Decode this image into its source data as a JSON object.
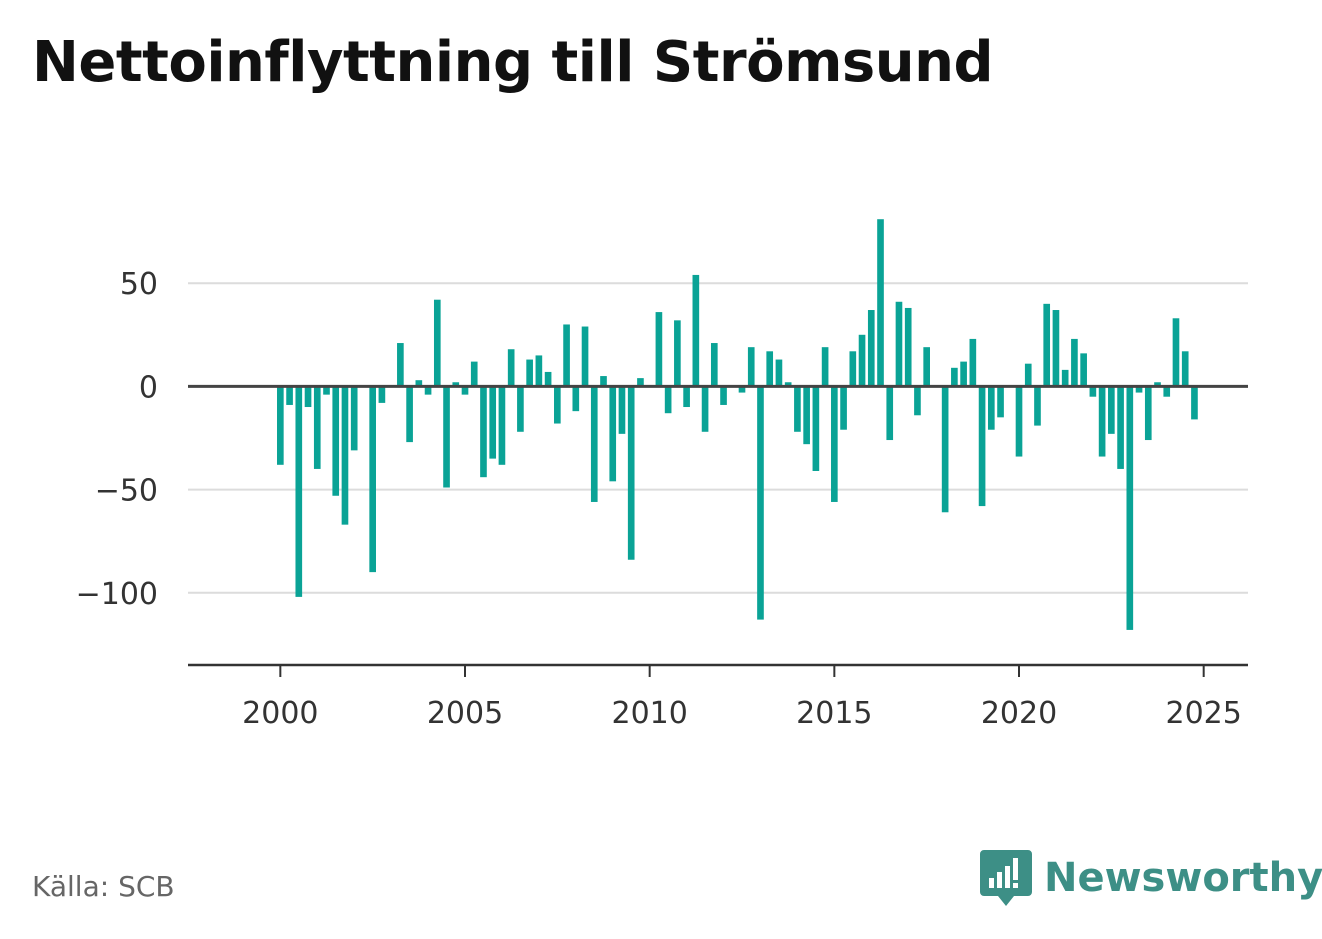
{
  "title": "Nettoinflyttning till Strömsund",
  "source": "Källa: SCB",
  "brand": {
    "name": "Newsworthy",
    "color": "#3d8f86"
  },
  "chart_data": {
    "type": "bar",
    "title": "Nettoinflyttning till Strömsund",
    "xlabel": "",
    "ylabel": "",
    "bar_color": "#0aa396",
    "x_start": 2000,
    "x_step": 0.25,
    "xlim": [
      1997.5,
      2026.2
    ],
    "ylim": [
      -135,
      100
    ],
    "yticks": [
      50,
      0,
      -50,
      -100
    ],
    "ytick_labels": [
      "50",
      "0",
      "−50",
      "−100"
    ],
    "xticks": [
      2000,
      2005,
      2010,
      2015,
      2020,
      2025
    ],
    "xtick_labels": [
      "2000",
      "2005",
      "2010",
      "2015",
      "2020",
      "2025"
    ],
    "grid": true,
    "values": [
      -38,
      -9,
      -102,
      -10,
      -40,
      -4,
      -53,
      -67,
      -31,
      0,
      -90,
      -8,
      0,
      21,
      -27,
      3,
      -4,
      42,
      -49,
      2,
      -4,
      12,
      -44,
      -35,
      -38,
      18,
      -22,
      13,
      15,
      7,
      -18,
      30,
      -12,
      29,
      -56,
      5,
      -46,
      -23,
      -84,
      4,
      0,
      36,
      -13,
      32,
      -10,
      54,
      -22,
      21,
      -9,
      0,
      -3,
      19,
      -113,
      17,
      13,
      2,
      -22,
      -28,
      -41,
      19,
      -56,
      -21,
      17,
      25,
      37,
      81,
      -26,
      41,
      38,
      -14,
      19,
      0,
      -61,
      9,
      12,
      23,
      -58,
      -21,
      -15,
      0,
      -34,
      11,
      -19,
      40,
      37,
      8,
      23,
      16,
      -5,
      -34,
      -23,
      -40,
      -118,
      -3,
      -26,
      2,
      -5,
      33,
      17,
      -16
    ]
  }
}
